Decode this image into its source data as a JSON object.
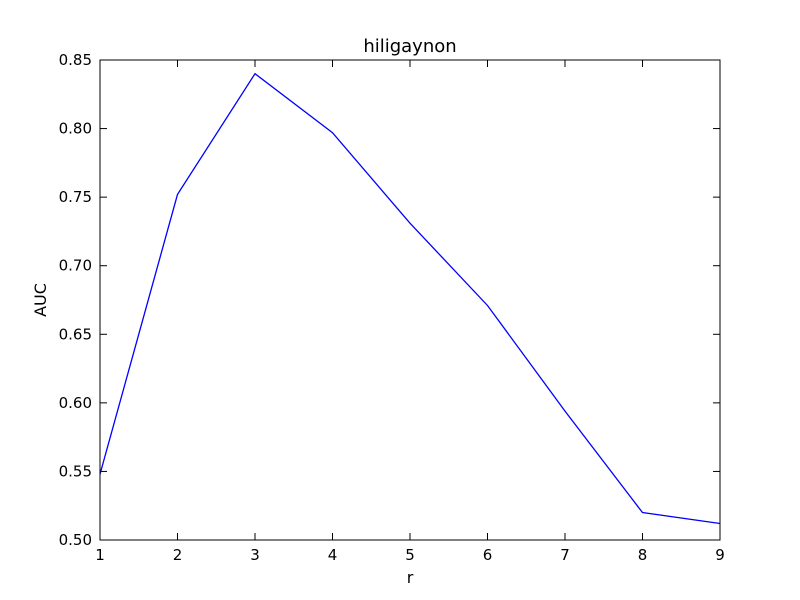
{
  "chart_data": {
    "type": "line",
    "title": "hiligaynon",
    "xlabel": "r",
    "ylabel": "AUC",
    "xlim": [
      1,
      9
    ],
    "ylim": [
      0.5,
      0.85
    ],
    "xticks": [
      "1",
      "2",
      "3",
      "4",
      "5",
      "6",
      "7",
      "8",
      "9"
    ],
    "yticks": [
      "0.50",
      "0.55",
      "0.60",
      "0.65",
      "0.70",
      "0.75",
      "0.80",
      "0.85"
    ],
    "grid": false,
    "series": [
      {
        "color": "#0000ff",
        "x": [
          1,
          2,
          3,
          4,
          5,
          6,
          7,
          8,
          9
        ],
        "y": [
          0.548,
          0.752,
          0.84,
          0.797,
          0.731,
          0.671,
          0.594,
          0.52,
          0.512
        ]
      }
    ]
  }
}
